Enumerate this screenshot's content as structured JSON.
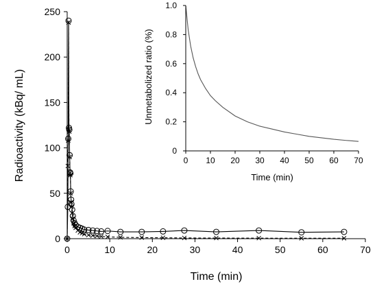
{
  "chart_data": [
    {
      "type": "line",
      "xlabel": "Time (min)",
      "ylabel": "Radioactivity (kBq/ mL)",
      "xlim": [
        0,
        70
      ],
      "ylim": [
        0,
        250
      ],
      "x_ticks": [
        "0",
        "10",
        "20",
        "30",
        "40",
        "50",
        "60",
        "70"
      ],
      "y_ticks": [
        "0",
        "50",
        "100",
        "150",
        "200",
        "250"
      ],
      "grid": false,
      "series": [
        {
          "marker": "circle",
          "line": "solid",
          "x": [
            0,
            0.15,
            0.25,
            0.33,
            0.42,
            0.5,
            0.58,
            0.67,
            0.75,
            0.83,
            0.92,
            1.0,
            1.17,
            1.33,
            1.5,
            1.75,
            2.0,
            2.5,
            3.0,
            3.5,
            4.0,
            5.0,
            6.0,
            7.0,
            8.0,
            9.5,
            12.5,
            17.5,
            22.5,
            27.5,
            35,
            45,
            55,
            65
          ],
          "y": [
            0,
            35,
            110,
            240,
            122,
            120,
            92,
            73,
            72,
            52,
            43,
            38,
            32,
            25,
            20,
            17,
            15,
            13,
            12,
            11,
            10,
            9.5,
            9,
            8.5,
            8,
            8.5,
            7.5,
            7.5,
            8,
            9,
            7.5,
            9,
            7,
            7.5
          ]
        },
        {
          "marker": "x",
          "line": "dashed",
          "x": [
            0,
            0.15,
            0.25,
            0.33,
            0.42,
            0.5,
            0.58,
            0.67,
            0.75,
            0.83,
            0.92,
            1.0,
            1.17,
            1.33,
            1.5,
            1.75,
            2.0,
            2.5,
            3.0,
            3.5,
            4.0,
            5.0,
            6.0,
            7.0,
            8.0,
            9.5,
            12.5,
            17.5,
            22.5,
            27.5,
            35,
            45,
            55,
            65
          ],
          "y": [
            0,
            80,
            108,
            238,
            120,
            118,
            90,
            72,
            70,
            50,
            40,
            35,
            28,
            22,
            17,
            14,
            12,
            9,
            7,
            6,
            5,
            4,
            3.5,
            3,
            2.5,
            2,
            1.5,
            1.2,
            1,
            0.8,
            0.7,
            0.6,
            0.5,
            0.5
          ]
        }
      ]
    },
    {
      "type": "line",
      "xlabel": "Time (min)",
      "ylabel": "Unmetabolized ratio (%)",
      "xlim": [
        0,
        70
      ],
      "ylim": [
        0,
        1.0
      ],
      "x_ticks": [
        "0",
        "10",
        "20",
        "30",
        "40",
        "50",
        "60",
        "70"
      ],
      "y_ticks": [
        "0",
        "0.2",
        "0.4",
        "0.6",
        "0.8",
        "1.0"
      ],
      "grid": false,
      "series": [
        {
          "line": "solid",
          "color": "#555555",
          "x": [
            0,
            1,
            2,
            3,
            4,
            5,
            6,
            8,
            10,
            12,
            15,
            20,
            25,
            30,
            35,
            40,
            45,
            50,
            55,
            60,
            65,
            70
          ],
          "y": [
            1.0,
            0.83,
            0.72,
            0.64,
            0.58,
            0.53,
            0.49,
            0.43,
            0.38,
            0.345,
            0.3,
            0.24,
            0.2,
            0.17,
            0.15,
            0.13,
            0.115,
            0.1,
            0.09,
            0.08,
            0.072,
            0.065
          ]
        }
      ]
    }
  ]
}
